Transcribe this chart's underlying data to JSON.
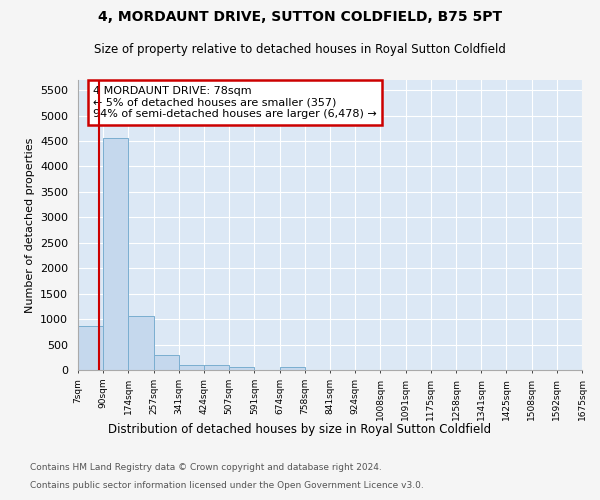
{
  "title1": "4, MORDAUNT DRIVE, SUTTON COLDFIELD, B75 5PT",
  "title2": "Size of property relative to detached houses in Royal Sutton Coldfield",
  "xlabel": "Distribution of detached houses by size in Royal Sutton Coldfield",
  "ylabel": "Number of detached properties",
  "footnote1": "Contains HM Land Registry data © Crown copyright and database right 2024.",
  "footnote2": "Contains public sector information licensed under the Open Government Licence v3.0.",
  "bar_color": "#c5d8ed",
  "bar_edge_color": "#7aaed0",
  "red_line_x": 78,
  "annotation_text": "4 MORDAUNT DRIVE: 78sqm\n← 5% of detached houses are smaller (357)\n94% of semi-detached houses are larger (6,478) →",
  "annotation_box_color": "#ffffff",
  "annotation_border_color": "#cc0000",
  "bin_edges": [
    7,
    90,
    174,
    257,
    341,
    424,
    507,
    591,
    674,
    758,
    841,
    924,
    1008,
    1091,
    1175,
    1258,
    1341,
    1425,
    1508,
    1592,
    1675
  ],
  "bar_heights": [
    870,
    4560,
    1060,
    290,
    95,
    95,
    60,
    0,
    60,
    0,
    0,
    0,
    0,
    0,
    0,
    0,
    0,
    0,
    0,
    0
  ],
  "ylim": [
    0,
    5700
  ],
  "yticks": [
    0,
    500,
    1000,
    1500,
    2000,
    2500,
    3000,
    3500,
    4000,
    4500,
    5000,
    5500
  ],
  "fig_bg_color": "#f5f5f5",
  "plot_bg_color": "#dce8f5",
  "grid_color": "#ffffff"
}
